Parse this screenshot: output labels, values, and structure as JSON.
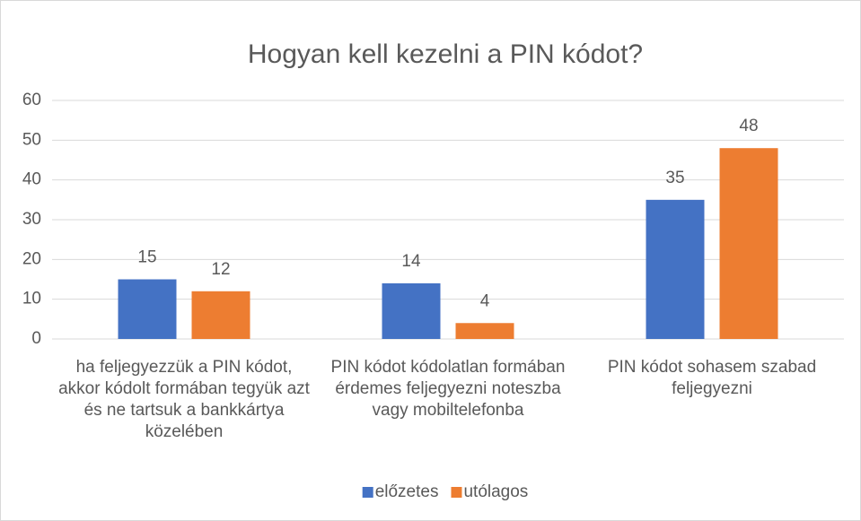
{
  "chart_data": {
    "type": "bar",
    "title": "Hogyan kell kezelni a PIN kódot?",
    "categories": [
      "ha feljegyezzük a PIN kódot, akkor kódolt formában tegyük azt és ne tartsuk a bankkártya közelében",
      "PIN kódot kódolatlan formában érdemes feljegyezni noteszba vagy mobiltelefonba",
      "PIN kódot sohasem szabad feljegyezni"
    ],
    "series": [
      {
        "name": "előzetes",
        "color": "#4472c4",
        "values": [
          15,
          14,
          35
        ]
      },
      {
        "name": "utólagos",
        "color": "#ed7d31",
        "values": [
          12,
          4,
          48
        ]
      }
    ],
    "ylim": [
      0,
      60
    ],
    "yticks": [
      0,
      10,
      20,
      30,
      40,
      50,
      60
    ],
    "grid": true,
    "legend": "bottom"
  }
}
